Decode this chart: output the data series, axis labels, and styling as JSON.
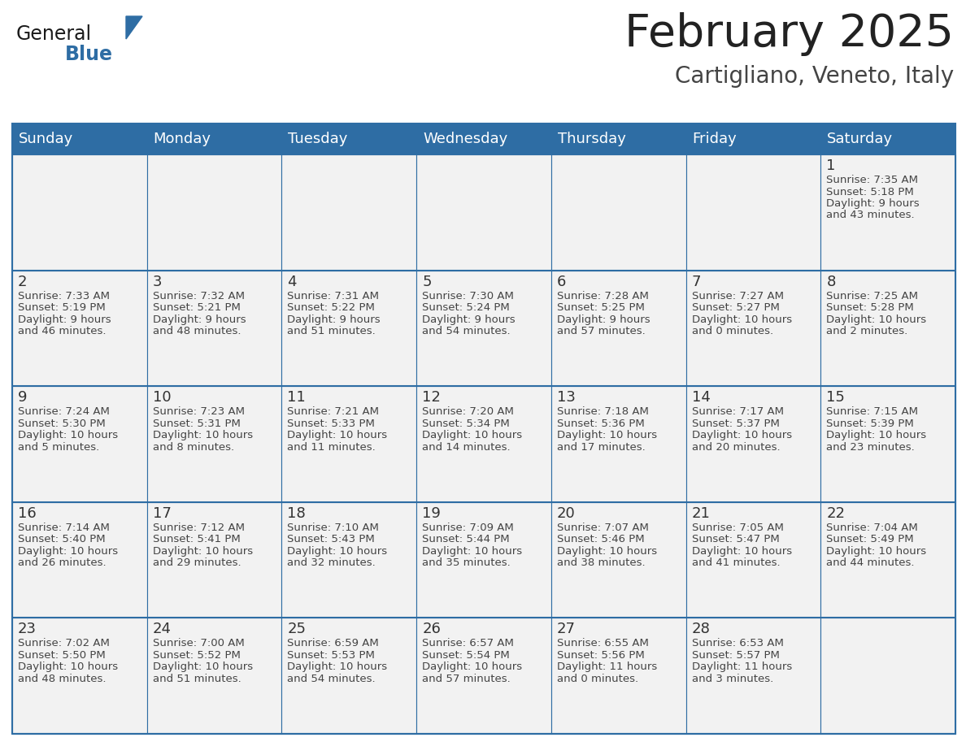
{
  "title": "February 2025",
  "subtitle": "Cartigliano, Veneto, Italy",
  "header_bg": "#2E6DA4",
  "header_text": "#FFFFFF",
  "cell_bg": "#F2F2F2",
  "border_color": "#2E6DA4",
  "title_color": "#222222",
  "subtitle_color": "#444444",
  "day_number_color": "#333333",
  "content_color": "#444444",
  "day_names": [
    "Sunday",
    "Monday",
    "Tuesday",
    "Wednesday",
    "Thursday",
    "Friday",
    "Saturday"
  ],
  "days": [
    {
      "day": 1,
      "col": 6,
      "row": 0,
      "sunrise": "7:35 AM",
      "sunset": "5:18 PM",
      "daylight_h": "9 hours",
      "daylight_m": "43 minutes"
    },
    {
      "day": 2,
      "col": 0,
      "row": 1,
      "sunrise": "7:33 AM",
      "sunset": "5:19 PM",
      "daylight_h": "9 hours",
      "daylight_m": "46 minutes"
    },
    {
      "day": 3,
      "col": 1,
      "row": 1,
      "sunrise": "7:32 AM",
      "sunset": "5:21 PM",
      "daylight_h": "9 hours",
      "daylight_m": "48 minutes"
    },
    {
      "day": 4,
      "col": 2,
      "row": 1,
      "sunrise": "7:31 AM",
      "sunset": "5:22 PM",
      "daylight_h": "9 hours",
      "daylight_m": "51 minutes"
    },
    {
      "day": 5,
      "col": 3,
      "row": 1,
      "sunrise": "7:30 AM",
      "sunset": "5:24 PM",
      "daylight_h": "9 hours",
      "daylight_m": "54 minutes"
    },
    {
      "day": 6,
      "col": 4,
      "row": 1,
      "sunrise": "7:28 AM",
      "sunset": "5:25 PM",
      "daylight_h": "9 hours",
      "daylight_m": "57 minutes"
    },
    {
      "day": 7,
      "col": 5,
      "row": 1,
      "sunrise": "7:27 AM",
      "sunset": "5:27 PM",
      "daylight_h": "10 hours",
      "daylight_m": "0 minutes"
    },
    {
      "day": 8,
      "col": 6,
      "row": 1,
      "sunrise": "7:25 AM",
      "sunset": "5:28 PM",
      "daylight_h": "10 hours",
      "daylight_m": "2 minutes"
    },
    {
      "day": 9,
      "col": 0,
      "row": 2,
      "sunrise": "7:24 AM",
      "sunset": "5:30 PM",
      "daylight_h": "10 hours",
      "daylight_m": "5 minutes"
    },
    {
      "day": 10,
      "col": 1,
      "row": 2,
      "sunrise": "7:23 AM",
      "sunset": "5:31 PM",
      "daylight_h": "10 hours",
      "daylight_m": "8 minutes"
    },
    {
      "day": 11,
      "col": 2,
      "row": 2,
      "sunrise": "7:21 AM",
      "sunset": "5:33 PM",
      "daylight_h": "10 hours",
      "daylight_m": "11 minutes"
    },
    {
      "day": 12,
      "col": 3,
      "row": 2,
      "sunrise": "7:20 AM",
      "sunset": "5:34 PM",
      "daylight_h": "10 hours",
      "daylight_m": "14 minutes"
    },
    {
      "day": 13,
      "col": 4,
      "row": 2,
      "sunrise": "7:18 AM",
      "sunset": "5:36 PM",
      "daylight_h": "10 hours",
      "daylight_m": "17 minutes"
    },
    {
      "day": 14,
      "col": 5,
      "row": 2,
      "sunrise": "7:17 AM",
      "sunset": "5:37 PM",
      "daylight_h": "10 hours",
      "daylight_m": "20 minutes"
    },
    {
      "day": 15,
      "col": 6,
      "row": 2,
      "sunrise": "7:15 AM",
      "sunset": "5:39 PM",
      "daylight_h": "10 hours",
      "daylight_m": "23 minutes"
    },
    {
      "day": 16,
      "col": 0,
      "row": 3,
      "sunrise": "7:14 AM",
      "sunset": "5:40 PM",
      "daylight_h": "10 hours",
      "daylight_m": "26 minutes"
    },
    {
      "day": 17,
      "col": 1,
      "row": 3,
      "sunrise": "7:12 AM",
      "sunset": "5:41 PM",
      "daylight_h": "10 hours",
      "daylight_m": "29 minutes"
    },
    {
      "day": 18,
      "col": 2,
      "row": 3,
      "sunrise": "7:10 AM",
      "sunset": "5:43 PM",
      "daylight_h": "10 hours",
      "daylight_m": "32 minutes"
    },
    {
      "day": 19,
      "col": 3,
      "row": 3,
      "sunrise": "7:09 AM",
      "sunset": "5:44 PM",
      "daylight_h": "10 hours",
      "daylight_m": "35 minutes"
    },
    {
      "day": 20,
      "col": 4,
      "row": 3,
      "sunrise": "7:07 AM",
      "sunset": "5:46 PM",
      "daylight_h": "10 hours",
      "daylight_m": "38 minutes"
    },
    {
      "day": 21,
      "col": 5,
      "row": 3,
      "sunrise": "7:05 AM",
      "sunset": "5:47 PM",
      "daylight_h": "10 hours",
      "daylight_m": "41 minutes"
    },
    {
      "day": 22,
      "col": 6,
      "row": 3,
      "sunrise": "7:04 AM",
      "sunset": "5:49 PM",
      "daylight_h": "10 hours",
      "daylight_m": "44 minutes"
    },
    {
      "day": 23,
      "col": 0,
      "row": 4,
      "sunrise": "7:02 AM",
      "sunset": "5:50 PM",
      "daylight_h": "10 hours",
      "daylight_m": "48 minutes"
    },
    {
      "day": 24,
      "col": 1,
      "row": 4,
      "sunrise": "7:00 AM",
      "sunset": "5:52 PM",
      "daylight_h": "10 hours",
      "daylight_m": "51 minutes"
    },
    {
      "day": 25,
      "col": 2,
      "row": 4,
      "sunrise": "6:59 AM",
      "sunset": "5:53 PM",
      "daylight_h": "10 hours",
      "daylight_m": "54 minutes"
    },
    {
      "day": 26,
      "col": 3,
      "row": 4,
      "sunrise": "6:57 AM",
      "sunset": "5:54 PM",
      "daylight_h": "10 hours",
      "daylight_m": "57 minutes"
    },
    {
      "day": 27,
      "col": 4,
      "row": 4,
      "sunrise": "6:55 AM",
      "sunset": "5:56 PM",
      "daylight_h": "11 hours",
      "daylight_m": "0 minutes"
    },
    {
      "day": 28,
      "col": 5,
      "row": 4,
      "sunrise": "6:53 AM",
      "sunset": "5:57 PM",
      "daylight_h": "11 hours",
      "daylight_m": "3 minutes"
    }
  ]
}
